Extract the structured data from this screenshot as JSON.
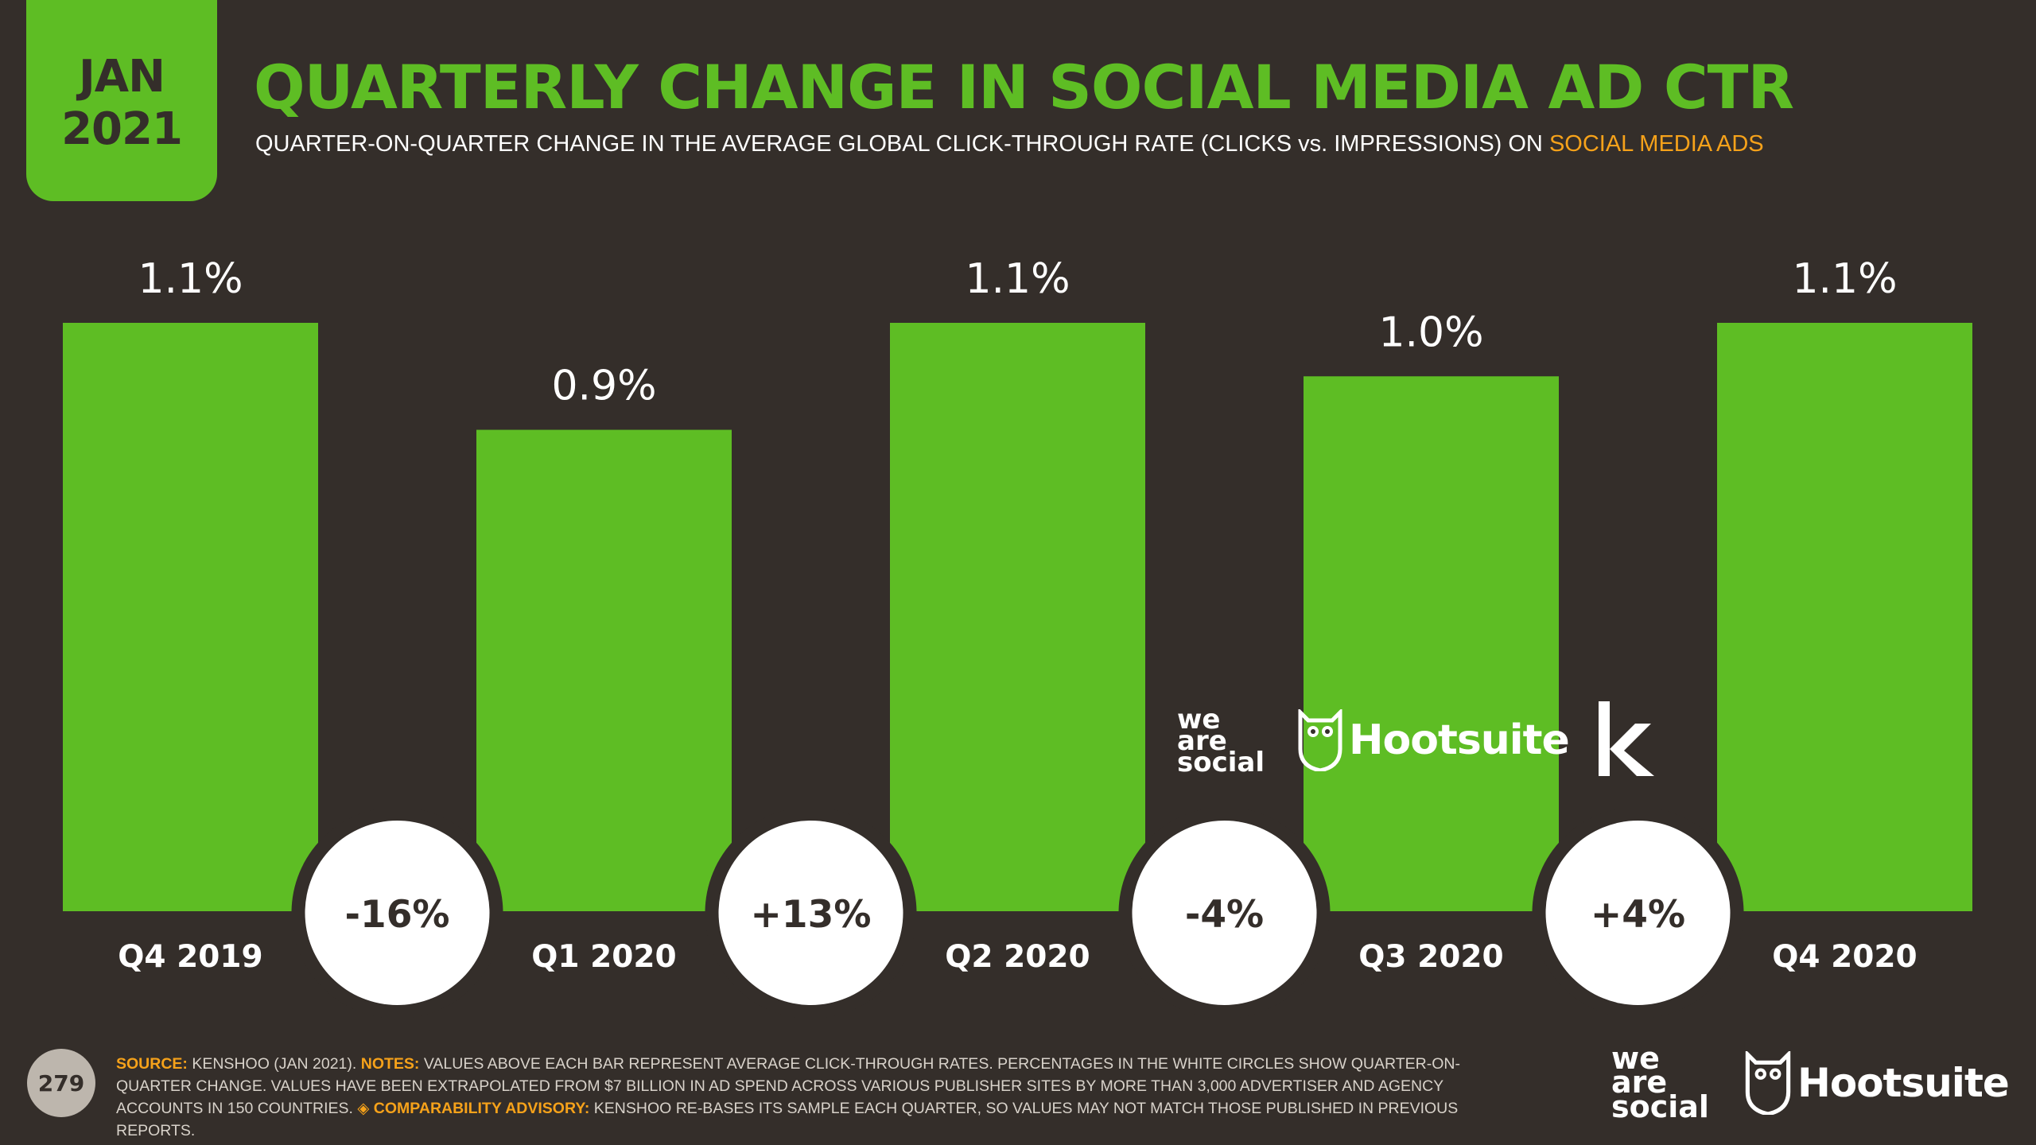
{
  "date_tab": {
    "month": "JAN",
    "year": "2021"
  },
  "title": "QUARTERLY CHANGE IN SOCIAL MEDIA AD CTR",
  "subtitle": {
    "main": "QUARTER-ON-QUARTER CHANGE IN THE AVERAGE GLOBAL CLICK-THROUGH RATE (CLICKS vs. IMPRESSIONS) ON ",
    "accent": "SOCIAL MEDIA ADS"
  },
  "chart_data": {
    "type": "bar",
    "title": "QUARTERLY CHANGE IN SOCIAL MEDIA AD CTR",
    "xlabel": "",
    "ylabel": "",
    "categories": [
      "Q4 2019",
      "Q1 2020",
      "Q2 2020",
      "Q3 2020",
      "Q4 2020"
    ],
    "values": [
      1.1,
      0.9,
      1.1,
      1.0,
      1.1
    ],
    "value_labels": [
      "1.1%",
      "0.9%",
      "1.1%",
      "1.0%",
      "1.1%"
    ],
    "changes": [
      "-16%",
      "+13%",
      "-4%",
      "+4%"
    ],
    "ylim": [
      0,
      1.1
    ],
    "grid": false,
    "legend": "none"
  },
  "logos": {
    "we_are_social": [
      "we",
      "are",
      "social"
    ],
    "hootsuite": "Hootsuite",
    "kenshoo": "k"
  },
  "footer": {
    "page_number": "279",
    "source_label": "SOURCE:",
    "source_text": " KENSHOO (JAN 2021). ",
    "notes_label": "NOTES:",
    "notes_text": " VALUES ABOVE EACH BAR REPRESENT AVERAGE CLICK-THROUGH RATES. PERCENTAGES IN THE WHITE CIRCLES SHOW QUARTER-ON-QUARTER CHANGE. VALUES HAVE BEEN EXTRAPOLATED FROM $7 BILLION IN AD SPEND ACROSS VARIOUS PUBLISHER SITES BY MORE THAN 3,000 ADVERTISER AND AGENCY ACCOUNTS IN 150 COUNTRIES. ",
    "advisory_label": "◈ COMPARABILITY ADVISORY:",
    "advisory_text": " KENSHOO RE-BASES ITS SAMPLE EACH QUARTER, SO VALUES MAY NOT MATCH THOSE PUBLISHED IN PREVIOUS REPORTS."
  },
  "colors": {
    "background": "#342e2a",
    "bar": "#5ebd24",
    "accent": "#f6a21a",
    "circle": "#ffffff"
  }
}
